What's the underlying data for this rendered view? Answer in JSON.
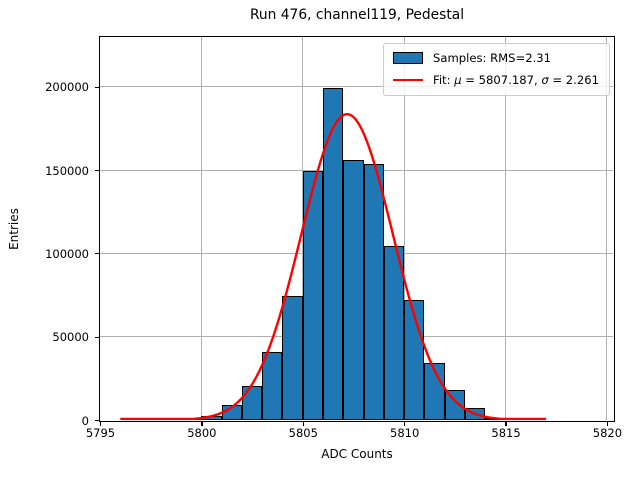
{
  "title": "Run 476, channel119, Pedestal",
  "xlabel": "ADC Counts",
  "ylabel": "Entries",
  "legend": {
    "samples_label": "Samples: RMS=2.31",
    "fit_parts": {
      "prefix": "Fit: ",
      "mu_symbol": "μ",
      "mu_value_text": " = 5807.187, ",
      "sigma_symbol": "σ",
      "sigma_value_text": " = 2.261"
    }
  },
  "chart_data": {
    "type": "bar",
    "subtype": "histogram_with_gaussian_fit",
    "title": "Run 476, channel119, Pedestal",
    "xlabel": "ADC Counts",
    "ylabel": "Entries",
    "xlim": [
      5795,
      5820.3
    ],
    "ylim": [
      0,
      229800
    ],
    "xticks": [
      5795,
      5800,
      5805,
      5810,
      5815,
      5820
    ],
    "yticks": [
      0,
      50000,
      100000,
      150000,
      200000
    ],
    "grid": true,
    "legend_position": "upper right",
    "bar_color": "#1f77b4",
    "bar_edge_color": "#000000",
    "grid_color": "#b0b0b0",
    "bin_width": 1,
    "bin_left_edges": [
      5799,
      5800,
      5801,
      5802,
      5803,
      5804,
      5805,
      5806,
      5807,
      5808,
      5809,
      5810,
      5811,
      5812,
      5813,
      5814
    ],
    "counts": [
      1200,
      2200,
      9000,
      20500,
      41000,
      74500,
      149500,
      199000,
      156000,
      153600,
      104300,
      72000,
      34000,
      18000,
      7200,
      1100
    ],
    "samples_rms": 2.31,
    "fit": {
      "mu": 5807.187,
      "sigma": 2.261,
      "peak": 183500,
      "x_start": 5796,
      "x_end": 5817,
      "color": "#ff0000",
      "linewidth": 2.4
    }
  }
}
